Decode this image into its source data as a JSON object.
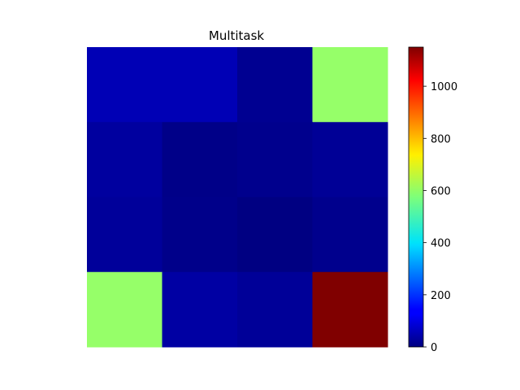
{
  "chart_data": {
    "type": "heatmap",
    "title": "Multitask",
    "rows": 4,
    "cols": 4,
    "values": [
      [
        60,
        60,
        20,
        600
      ],
      [
        35,
        10,
        15,
        25
      ],
      [
        30,
        12,
        3,
        15
      ],
      [
        600,
        40,
        28,
        1150
      ]
    ],
    "colormap": "jet",
    "colorbar": {
      "range": [
        0,
        1150
      ],
      "ticks": [
        0,
        200,
        400,
        600,
        800,
        1000
      ],
      "tick_labels": [
        "0",
        "200",
        "400",
        "600",
        "800",
        "1000"
      ]
    },
    "x_axis_visible": false,
    "y_axis_visible": false
  }
}
